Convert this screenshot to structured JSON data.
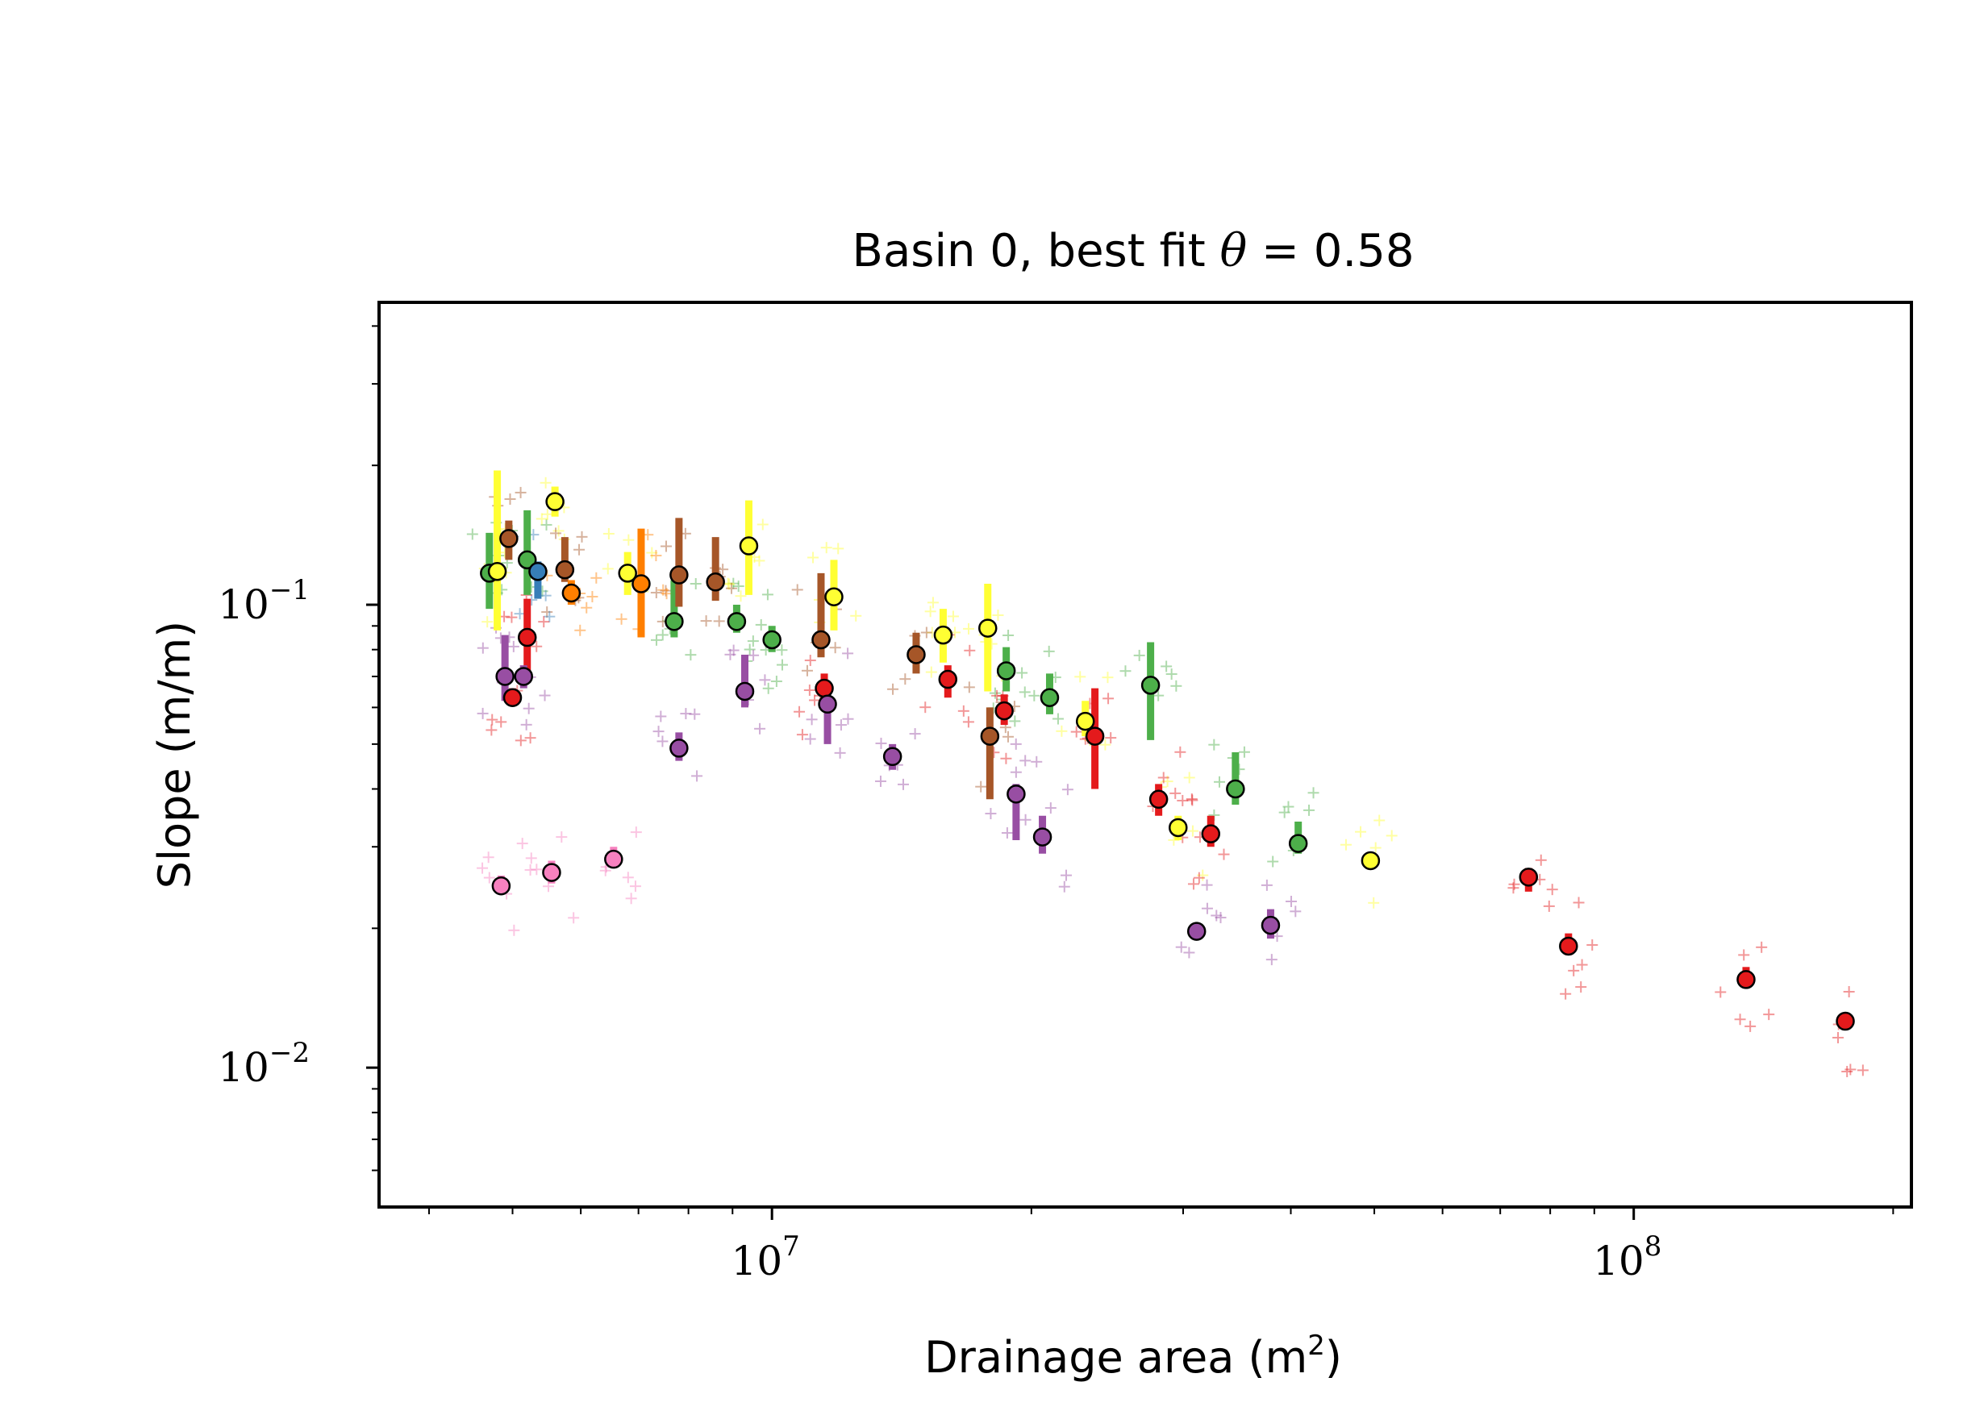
{
  "chart_data": {
    "type": "scatter",
    "title": "Basin 0, best fit θ = 0.58",
    "title_parts": {
      "prefix": "Basin 0, best fit ",
      "symbol": "θ",
      "suffix": " = 0.58"
    },
    "xlabel": "Drainage area (m",
    "xlabel_sup": "2",
    "xlabel_suffix": ")",
    "ylabel": "Slope (m/m)",
    "xscale": "log",
    "yscale": "log",
    "xlim": [
      3500000,
      210000000
    ],
    "ylim": [
      0.005,
      0.45
    ],
    "x_major_ticks": [
      {
        "value": 10000000,
        "base": "10",
        "exp": "7"
      },
      {
        "value": 100000000,
        "base": "10",
        "exp": "8"
      }
    ],
    "y_major_ticks": [
      {
        "value": 0.1,
        "base": "10",
        "exp": "−1"
      },
      {
        "value": 0.01,
        "base": "10",
        "exp": "−2"
      }
    ],
    "grid": false,
    "legend": "none",
    "series": [
      {
        "color": "#4daf4a",
        "points": [
          {
            "x": 4700000,
            "y": 0.117,
            "ylo": 0.098,
            "yhi": 0.143
          },
          {
            "x": 5200000,
            "y": 0.125,
            "ylo": 0.105,
            "yhi": 0.16
          },
          {
            "x": 7700000,
            "y": 0.092,
            "ylo": 0.085,
            "yhi": 0.113
          },
          {
            "x": 9100000,
            "y": 0.092,
            "ylo": 0.087,
            "yhi": 0.1
          },
          {
            "x": 10000000,
            "y": 0.084,
            "ylo": 0.079,
            "yhi": 0.09
          },
          {
            "x": 18700000,
            "y": 0.072,
            "ylo": 0.065,
            "yhi": 0.081
          },
          {
            "x": 21000000,
            "y": 0.063,
            "ylo": 0.058,
            "yhi": 0.071
          },
          {
            "x": 27500000,
            "y": 0.067,
            "ylo": 0.051,
            "yhi": 0.083
          },
          {
            "x": 34500000,
            "y": 0.04,
            "ylo": 0.037,
            "yhi": 0.048
          },
          {
            "x": 40800000,
            "y": 0.0305,
            "ylo": 0.029,
            "yhi": 0.034
          }
        ]
      },
      {
        "color": "#ffff33",
        "points": [
          {
            "x": 4800000,
            "y": 0.118,
            "ylo": 0.088,
            "yhi": 0.195
          },
          {
            "x": 5600000,
            "y": 0.167,
            "ylo": 0.155,
            "yhi": 0.18
          },
          {
            "x": 6800000,
            "y": 0.117,
            "ylo": 0.105,
            "yhi": 0.13
          },
          {
            "x": 9400000,
            "y": 0.134,
            "ylo": 0.105,
            "yhi": 0.168
          },
          {
            "x": 11800000,
            "y": 0.104,
            "ylo": 0.088,
            "yhi": 0.125
          },
          {
            "x": 15800000,
            "y": 0.086,
            "ylo": 0.075,
            "yhi": 0.098
          },
          {
            "x": 17800000,
            "y": 0.089,
            "ylo": 0.065,
            "yhi": 0.111
          },
          {
            "x": 23100000,
            "y": 0.056,
            "ylo": 0.052,
            "yhi": 0.062
          },
          {
            "x": 29600000,
            "y": 0.033,
            "ylo": 0.031,
            "yhi": 0.035
          },
          {
            "x": 49500000,
            "y": 0.028,
            "ylo": 0.027,
            "yhi": 0.029
          }
        ]
      },
      {
        "color": "#a65628",
        "points": [
          {
            "x": 4950000,
            "y": 0.139,
            "ylo": 0.125,
            "yhi": 0.152
          },
          {
            "x": 5750000,
            "y": 0.119,
            "ylo": 0.112,
            "yhi": 0.14
          },
          {
            "x": 7800000,
            "y": 0.116,
            "ylo": 0.099,
            "yhi": 0.154
          },
          {
            "x": 8600000,
            "y": 0.112,
            "ylo": 0.102,
            "yhi": 0.14
          },
          {
            "x": 11400000,
            "y": 0.084,
            "ylo": 0.077,
            "yhi": 0.117
          },
          {
            "x": 14700000,
            "y": 0.078,
            "ylo": 0.071,
            "yhi": 0.087
          },
          {
            "x": 17900000,
            "y": 0.052,
            "ylo": 0.038,
            "yhi": 0.06
          }
        ]
      },
      {
        "color": "#ff7f00",
        "points": [
          {
            "x": 5850000,
            "y": 0.106,
            "ylo": 0.1,
            "yhi": 0.113
          },
          {
            "x": 7050000,
            "y": 0.111,
            "ylo": 0.085,
            "yhi": 0.146
          }
        ]
      },
      {
        "color": "#377eb8",
        "points": [
          {
            "x": 5350000,
            "y": 0.118,
            "ylo": 0.103,
            "yhi": 0.124
          }
        ]
      },
      {
        "color": "#e41a1c",
        "points": [
          {
            "x": 5000000,
            "y": 0.063,
            "ylo": 0.061,
            "yhi": 0.066
          },
          {
            "x": 5200000,
            "y": 0.085,
            "ylo": 0.072,
            "yhi": 0.103
          },
          {
            "x": 11500000,
            "y": 0.066,
            "ylo": 0.062,
            "yhi": 0.071
          },
          {
            "x": 16000000,
            "y": 0.069,
            "ylo": 0.063,
            "yhi": 0.074
          },
          {
            "x": 18600000,
            "y": 0.059,
            "ylo": 0.055,
            "yhi": 0.064
          },
          {
            "x": 23700000,
            "y": 0.052,
            "ylo": 0.04,
            "yhi": 0.066
          },
          {
            "x": 28100000,
            "y": 0.038,
            "ylo": 0.035,
            "yhi": 0.041
          },
          {
            "x": 32300000,
            "y": 0.032,
            "ylo": 0.03,
            "yhi": 0.035
          },
          {
            "x": 75500000,
            "y": 0.0258,
            "ylo": 0.024,
            "yhi": 0.027
          },
          {
            "x": 84000000,
            "y": 0.0183,
            "ylo": 0.0175,
            "yhi": 0.0195
          },
          {
            "x": 135000000,
            "y": 0.0155,
            "ylo": 0.015,
            "yhi": 0.0165
          },
          {
            "x": 176000000,
            "y": 0.0126,
            "ylo": 0.0124,
            "yhi": 0.0129
          }
        ]
      },
      {
        "color": "#984ea3",
        "points": [
          {
            "x": 4900000,
            "y": 0.07,
            "ylo": 0.062,
            "yhi": 0.086
          },
          {
            "x": 5150000,
            "y": 0.07,
            "ylo": 0.066,
            "yhi": 0.074
          },
          {
            "x": 7800000,
            "y": 0.049,
            "ylo": 0.046,
            "yhi": 0.053
          },
          {
            "x": 9300000,
            "y": 0.065,
            "ylo": 0.06,
            "yhi": 0.078
          },
          {
            "x": 11600000,
            "y": 0.061,
            "ylo": 0.05,
            "yhi": 0.068
          },
          {
            "x": 13800000,
            "y": 0.047,
            "ylo": 0.044,
            "yhi": 0.05
          },
          {
            "x": 19200000,
            "y": 0.039,
            "ylo": 0.031,
            "yhi": 0.041
          },
          {
            "x": 20600000,
            "y": 0.0315,
            "ylo": 0.029,
            "yhi": 0.035
          },
          {
            "x": 31100000,
            "y": 0.0197,
            "ylo": 0.019,
            "yhi": 0.0205
          },
          {
            "x": 37900000,
            "y": 0.0203,
            "ylo": 0.019,
            "yhi": 0.022
          }
        ]
      },
      {
        "color": "#f781bf",
        "points": [
          {
            "x": 4850000,
            "y": 0.0247,
            "ylo": 0.024,
            "yhi": 0.026
          },
          {
            "x": 5550000,
            "y": 0.0264,
            "ylo": 0.025,
            "yhi": 0.028
          },
          {
            "x": 6550000,
            "y": 0.0282,
            "ylo": 0.027,
            "yhi": 0.03
          }
        ]
      }
    ]
  }
}
